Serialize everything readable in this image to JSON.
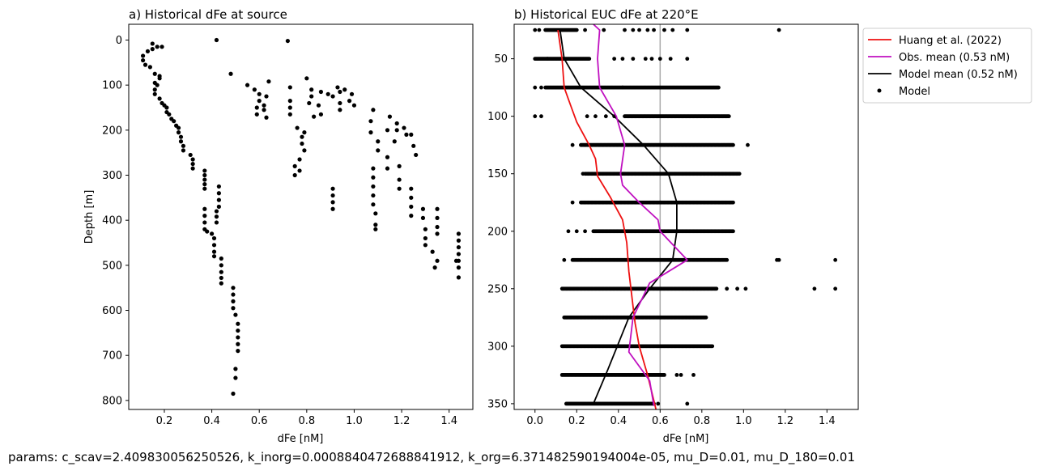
{
  "footer": {
    "params_text": "params: c_scav=2.409830056250526, k_inorg=0.0008840472688841912, k_org=6.371482590194004e-05, mu_D=0.01, mu_D_180=0.01"
  },
  "chart_data": [
    {
      "type": "scatter",
      "title": "a) Historical dFe at source",
      "xlabel": "dFe [nM]",
      "ylabel": "Depth [m]",
      "xlim": [
        0.05,
        1.5
      ],
      "ylim": [
        820,
        -35
      ],
      "y_inverted": true,
      "xticks": [
        0.2,
        0.4,
        0.6,
        0.8,
        1.0,
        1.2,
        1.4
      ],
      "xtick_labels": [
        "0.2",
        "0.4",
        "0.6",
        "0.8",
        "1.0",
        "1.2",
        "1.4"
      ],
      "yticks": [
        0,
        100,
        200,
        300,
        400,
        500,
        600,
        700,
        800
      ],
      "ytick_labels": [
        "0",
        "100",
        "200",
        "300",
        "400",
        "500",
        "600",
        "700",
        "800"
      ],
      "point_color": "#000000",
      "series": [
        {
          "points": [
            [
              0.11,
              35
            ],
            [
              0.11,
              45
            ],
            [
              0.12,
              55
            ],
            [
              0.13,
              25
            ],
            [
              0.14,
              60
            ],
            [
              0.15,
              8
            ],
            [
              0.15,
              20
            ],
            [
              0.17,
              15
            ],
            [
              0.19,
              15
            ],
            [
              0.16,
              75
            ],
            [
              0.18,
              80
            ],
            [
              0.18,
              85
            ],
            [
              0.16,
              95
            ],
            [
              0.17,
              100
            ],
            [
              0.16,
              110
            ],
            [
              0.16,
              120
            ],
            [
              0.18,
              130
            ],
            [
              0.19,
              140
            ],
            [
              0.2,
              145
            ],
            [
              0.21,
              150
            ],
            [
              0.21,
              160
            ],
            [
              0.22,
              165
            ],
            [
              0.23,
              175
            ],
            [
              0.24,
              180
            ],
            [
              0.25,
              190
            ],
            [
              0.26,
              195
            ],
            [
              0.26,
              205
            ],
            [
              0.27,
              215
            ],
            [
              0.27,
              225
            ],
            [
              0.28,
              235
            ],
            [
              0.28,
              245
            ],
            [
              0.31,
              255
            ],
            [
              0.32,
              265
            ],
            [
              0.32,
              275
            ],
            [
              0.32,
              285
            ],
            [
              0.37,
              290
            ],
            [
              0.37,
              300
            ],
            [
              0.37,
              310
            ],
            [
              0.37,
              320
            ],
            [
              0.37,
              330
            ],
            [
              0.43,
              325
            ],
            [
              0.43,
              340
            ],
            [
              0.43,
              355
            ],
            [
              0.43,
              370
            ],
            [
              0.42,
              380
            ],
            [
              0.42,
              392
            ],
            [
              0.42,
              405
            ],
            [
              0.37,
              375
            ],
            [
              0.37,
              390
            ],
            [
              0.37,
              405
            ],
            [
              0.37,
              420
            ],
            [
              0.38,
              425
            ],
            [
              0.4,
              430
            ],
            [
              0.41,
              440
            ],
            [
              0.41,
              455
            ],
            [
              0.41,
              470
            ],
            [
              0.41,
              480
            ],
            [
              0.44,
              485
            ],
            [
              0.44,
              500
            ],
            [
              0.44,
              515
            ],
            [
              0.44,
              528
            ],
            [
              0.44,
              540
            ],
            [
              0.49,
              550
            ],
            [
              0.49,
              565
            ],
            [
              0.49,
              580
            ],
            [
              0.49,
              595
            ],
            [
              0.5,
              610
            ],
            [
              0.51,
              630
            ],
            [
              0.51,
              645
            ],
            [
              0.51,
              660
            ],
            [
              0.51,
              675
            ],
            [
              0.51,
              690
            ],
            [
              0.5,
              730
            ],
            [
              0.5,
              750
            ],
            [
              0.49,
              785
            ],
            [
              0.42,
              0
            ],
            [
              0.72,
              2
            ],
            [
              0.48,
              75
            ],
            [
              0.55,
              100
            ],
            [
              0.58,
              110
            ],
            [
              0.64,
              92
            ],
            [
              0.6,
              120
            ],
            [
              0.6,
              135
            ],
            [
              0.59,
              150
            ],
            [
              0.59,
              165
            ],
            [
              0.62,
              145
            ],
            [
              0.63,
              125
            ],
            [
              0.62,
              155
            ],
            [
              0.63,
              172
            ],
            [
              0.73,
              105
            ],
            [
              0.8,
              85
            ],
            [
              0.82,
              110
            ],
            [
              0.82,
              125
            ],
            [
              0.73,
              135
            ],
            [
              0.73,
              150
            ],
            [
              0.73,
              165
            ],
            [
              0.81,
              140
            ],
            [
              0.83,
              170
            ],
            [
              0.76,
              195
            ],
            [
              0.78,
              215
            ],
            [
              0.78,
              230
            ],
            [
              0.77,
              265
            ],
            [
              0.75,
              280
            ],
            [
              0.75,
              300
            ],
            [
              0.77,
              290
            ],
            [
              0.79,
              245
            ],
            [
              0.79,
              205
            ],
            [
              0.85,
              145
            ],
            [
              0.86,
              115
            ],
            [
              0.86,
              165
            ],
            [
              0.89,
              120
            ],
            [
              0.91,
              125
            ],
            [
              0.94,
              115
            ],
            [
              0.93,
              105
            ],
            [
              0.96,
              110
            ],
            [
              0.99,
              120
            ],
            [
              0.98,
              135
            ],
            [
              1.0,
              145
            ],
            [
              0.94,
              140
            ],
            [
              0.94,
              155
            ],
            [
              1.08,
              155
            ],
            [
              1.07,
              180
            ],
            [
              1.07,
              205
            ],
            [
              1.08,
              285
            ],
            [
              1.08,
              305
            ],
            [
              1.08,
              325
            ],
            [
              1.08,
              345
            ],
            [
              1.08,
              365
            ],
            [
              1.09,
              385
            ],
            [
              1.09,
              410
            ],
            [
              1.09,
              420
            ],
            [
              0.91,
              330
            ],
            [
              0.91,
              345
            ],
            [
              0.91,
              360
            ],
            [
              0.91,
              375
            ],
            [
              1.1,
              225
            ],
            [
              1.1,
              245
            ],
            [
              1.14,
              200
            ],
            [
              1.15,
              170
            ],
            [
              1.18,
              185
            ],
            [
              1.18,
              200
            ],
            [
              1.17,
              225
            ],
            [
              1.14,
              260
            ],
            [
              1.14,
              285
            ],
            [
              1.19,
              280
            ],
            [
              1.19,
              310
            ],
            [
              1.19,
              330
            ],
            [
              1.22,
              210
            ],
            [
              1.21,
              195
            ],
            [
              1.24,
              210
            ],
            [
              1.25,
              235
            ],
            [
              1.26,
              255
            ],
            [
              1.24,
              330
            ],
            [
              1.24,
              350
            ],
            [
              1.24,
              370
            ],
            [
              1.24,
              390
            ],
            [
              1.29,
              375
            ],
            [
              1.29,
              395
            ],
            [
              1.3,
              420
            ],
            [
              1.3,
              440
            ],
            [
              1.3,
              455
            ],
            [
              1.33,
              470
            ],
            [
              1.35,
              490
            ],
            [
              1.34,
              505
            ],
            [
              1.35,
              375
            ],
            [
              1.35,
              395
            ],
            [
              1.35,
              415
            ],
            [
              1.35,
              430
            ],
            [
              1.44,
              430
            ],
            [
              1.44,
              445
            ],
            [
              1.44,
              460
            ],
            [
              1.44,
              475
            ],
            [
              1.44,
              490
            ],
            [
              1.44,
              505
            ],
            [
              1.44,
              527
            ],
            [
              1.43,
              490
            ]
          ]
        }
      ]
    },
    {
      "type": "line",
      "title": "b) Historical EUC dFe at 220°E",
      "xlabel": "dFe [nM]",
      "ylabel": "",
      "xlim": [
        -0.1,
        1.55
      ],
      "ylim": [
        355,
        20
      ],
      "y_inverted": true,
      "xticks": [
        0.0,
        0.2,
        0.4,
        0.6,
        0.8,
        1.0,
        1.2,
        1.4
      ],
      "xtick_labels": [
        "0.0",
        "0.2",
        "0.4",
        "0.6",
        "0.8",
        "1.0",
        "1.2",
        "1.4"
      ],
      "yticks": [
        50,
        100,
        150,
        200,
        250,
        300,
        350
      ],
      "ytick_labels": [
        "50",
        "100",
        "150",
        "200",
        "250",
        "300",
        "350"
      ],
      "legend_position": "outside-top-right",
      "vline": {
        "x": 0.6,
        "color": "#aaaaaa"
      },
      "series": [
        {
          "name": "Huang et al. (2022)",
          "color": "#ee1111",
          "x": [
            0.11,
            0.13,
            0.14,
            0.17,
            0.2,
            0.26,
            0.29,
            0.3,
            0.36,
            0.42,
            0.44,
            0.45,
            0.47,
            0.48,
            0.5,
            0.54,
            0.58
          ],
          "y": [
            25,
            50,
            75,
            90,
            105,
            125,
            137,
            152,
            170,
            190,
            210,
            235,
            265,
            280,
            300,
            325,
            355
          ]
        },
        {
          "name": "Obs. mean (0.53 nM)",
          "color": "#c010c0",
          "x": [
            0.28,
            0.31,
            0.3,
            0.31,
            0.39,
            0.43,
            0.41,
            0.42,
            0.5,
            0.59,
            0.6,
            0.73,
            0.55,
            0.47,
            0.45,
            0.55,
            0.57
          ],
          "y": [
            20,
            25,
            50,
            75,
            100,
            125,
            150,
            160,
            175,
            190,
            200,
            225,
            245,
            275,
            305,
            330,
            352
          ]
        },
        {
          "name": "Model mean (0.52 nM)",
          "color": "#000000",
          "x": [
            0.12,
            0.14,
            0.22,
            0.38,
            0.52,
            0.64,
            0.68,
            0.68,
            0.66,
            0.55,
            0.45,
            0.35,
            0.28
          ],
          "y": [
            25,
            50,
            75,
            100,
            125,
            150,
            175,
            200,
            225,
            250,
            275,
            320,
            350
          ]
        },
        {
          "name": "Model",
          "type": "scatter",
          "color": "#000000",
          "rows": [
            {
              "depth": 25,
              "dense": [
                0.05,
                0.2
              ],
              "outliers": [
                0.0,
                0.02,
                0.24,
                0.33,
                0.43,
                0.47,
                0.5,
                0.54,
                0.57,
                0.62,
                0.66,
                0.73,
                1.17
              ]
            },
            {
              "depth": 50,
              "dense": [
                0.0,
                0.26
              ],
              "outliers": [
                0.06,
                0.38,
                0.42,
                0.47,
                0.53,
                0.56,
                0.6,
                0.65,
                0.73
              ]
            },
            {
              "depth": 75,
              "dense": [
                0.05,
                0.88
              ],
              "outliers": [
                0.0,
                0.03,
                0.42
              ]
            },
            {
              "depth": 100,
              "dense": [
                0.43,
                0.93
              ],
              "outliers": [
                0.0,
                0.03,
                0.25,
                0.29,
                0.34,
                0.38
              ]
            },
            {
              "depth": 125,
              "dense": [
                0.22,
                0.95
              ],
              "outliers": [
                0.18,
                1.02
              ]
            },
            {
              "depth": 150,
              "dense": [
                0.24,
                0.98
              ],
              "outliers": [
                0.23
              ]
            },
            {
              "depth": 175,
              "dense": [
                0.22,
                0.95
              ],
              "outliers": [
                0.18
              ]
            },
            {
              "depth": 200,
              "dense": [
                0.28,
                0.95
              ],
              "outliers": [
                0.16,
                0.2,
                0.24
              ]
            },
            {
              "depth": 225,
              "dense": [
                0.18,
                0.92
              ],
              "outliers": [
                0.14,
                1.16,
                1.17,
                1.44
              ]
            },
            {
              "depth": 250,
              "dense": [
                0.13,
                0.87
              ],
              "outliers": [
                0.92,
                0.97,
                1.01,
                1.34,
                1.44
              ]
            },
            {
              "depth": 275,
              "dense": [
                0.14,
                0.82
              ],
              "outliers": []
            },
            {
              "depth": 300,
              "dense": [
                0.13,
                0.85
              ],
              "outliers": []
            },
            {
              "depth": 325,
              "dense": [
                0.13,
                0.62
              ],
              "outliers": [
                0.68,
                0.7,
                0.76
              ]
            },
            {
              "depth": 350,
              "dense": [
                0.15,
                0.57
              ],
              "outliers": [
                0.59,
                0.73
              ]
            }
          ]
        }
      ]
    }
  ]
}
